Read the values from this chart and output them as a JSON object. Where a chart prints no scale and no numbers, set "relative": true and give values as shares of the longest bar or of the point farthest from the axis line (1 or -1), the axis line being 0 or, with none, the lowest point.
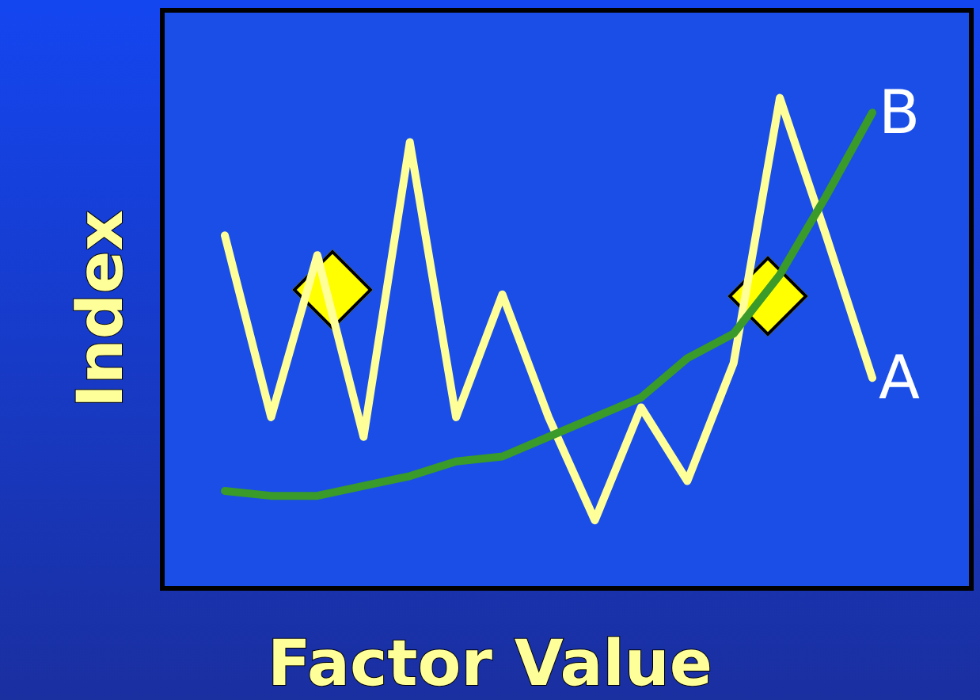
{
  "chart_data": {
    "type": "line",
    "xlabel": "Factor Value",
    "ylabel": "Index",
    "relative": true,
    "grid": false,
    "legend": false,
    "categories": [
      null,
      null,
      null,
      null,
      null,
      null,
      null,
      null,
      null,
      null,
      null,
      null,
      null,
      null,
      null
    ],
    "series": [
      {
        "name": "A",
        "color": "#ffff99",
        "marker": "none",
        "values": [
          0.72,
          0.35,
          0.68,
          0.31,
          0.91,
          0.35,
          0.6,
          0.35,
          0.14,
          0.37,
          0.22,
          0.46,
          1.0,
          0.72,
          0.43
        ]
      },
      {
        "name": "B",
        "color": "#3a9a2a",
        "marker": "none",
        "values": [
          0.2,
          0.19,
          0.19,
          0.21,
          0.23,
          0.26,
          0.27,
          0.31,
          0.35,
          0.39,
          0.47,
          0.52,
          0.64,
          0.8,
          0.97
        ]
      }
    ]
  }
}
